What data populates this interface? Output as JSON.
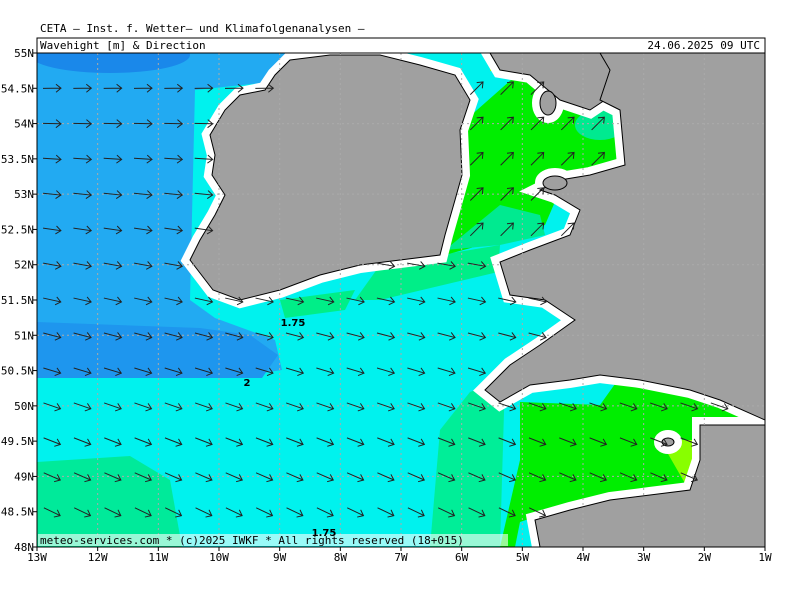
{
  "header": {
    "title": "CETA – Inst. f. Wetter– und Klimafolgenanalysen –",
    "subtitle": "Wavehight [m] & Direction",
    "datetime": "24.06.2025 09 UTC"
  },
  "axes": {
    "x_labels": [
      "13W",
      "12W",
      "11W",
      "10W",
      "9W",
      "8W",
      "7W",
      "6W",
      "5W",
      "4W",
      "3W",
      "2W",
      "1W"
    ],
    "y_labels": [
      "55N",
      "54.5N",
      "54N",
      "53.5N",
      "53N",
      "52.5N",
      "52N",
      "51.5N",
      "51N",
      "50.5N",
      "50N",
      "49.5N",
      "49N",
      "48.5N",
      "48N"
    ]
  },
  "contour_labels": [
    "1.75",
    "2",
    "1.75"
  ],
  "footer": "meteo-services.com * (c)2025 IWKF * All rights reserved (18+015)"
}
